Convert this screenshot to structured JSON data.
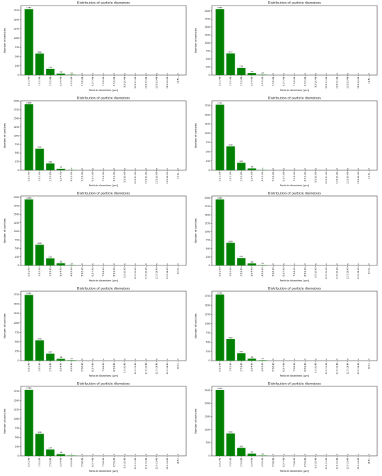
{
  "figure": {
    "panel_count": 10,
    "columns": 2,
    "bar_color": "#008000"
  },
  "chart_data": [
    {
      "type": "bar",
      "panel": "r1c1",
      "title": "Distribution of particle diameters",
      "xlabel": "Particle diameters [μm]",
      "ylabel": "Number of particles",
      "categories": [
        "0.5-1.49",
        "1.5-2.49",
        "2.5-3.49",
        "3.5-4.49",
        "4.5-5.49",
        "5.5-6.49",
        "6.5-7.49",
        "7.5-8.49",
        "8.5-9.49",
        "9.5-10.49",
        "10.5-11.49",
        "11.5-12.49",
        "12.5-13.49",
        "13.5-14.49",
        "14.5+"
      ],
      "values": [
        1782,
        582,
        170,
        40,
        10,
        0,
        0,
        0,
        0,
        0,
        0,
        0,
        0,
        0,
        0
      ],
      "yticks": [
        0,
        250,
        500,
        750,
        1000,
        1250,
        1500,
        1750
      ],
      "ylim": [
        0,
        1880
      ]
    },
    {
      "type": "bar",
      "panel": "r1c2",
      "title": "Distribution of particle diameters",
      "xlabel": "Particle diameters [μm]",
      "ylabel": "Number of particles",
      "categories": [
        "0.5-1.49",
        "1.5-2.49",
        "2.5-3.49",
        "3.5-4.49",
        "4.5-5.49",
        "5.5-6.49",
        "6.5-7.49",
        "7.5-8.49",
        "8.5-9.49",
        "9.5-10.49",
        "10.5-11.49",
        "11.5-12.49",
        "12.5-13.49",
        "13.5-14.49",
        "14.5+"
      ],
      "values": [
        2058,
        677,
        219,
        63,
        12,
        0,
        0,
        0,
        0,
        0,
        0,
        0,
        0,
        0,
        0
      ],
      "yticks": [
        0,
        250,
        500,
        750,
        1000,
        1250,
        1500,
        1750,
        2000
      ],
      "ylim": [
        0,
        2170
      ]
    },
    {
      "type": "bar",
      "panel": "r2c1",
      "title": "Distribution of particle diameters",
      "xlabel": "Particle diameters [μm]",
      "ylabel": "Number of particles",
      "categories": [
        "0.5-1.49",
        "1.5-2.49",
        "2.5-3.49",
        "3.5-4.49",
        "4.5-5.49",
        "5.5-6.49",
        "6.5-7.49",
        "7.5-8.49",
        "8.5-9.49",
        "9.5-10.49",
        "10.5-11.49",
        "11.5-12.49",
        "12.5-13.49",
        "13.5-14.49",
        "14.5+"
      ],
      "values": [
        1908,
        625,
        196,
        43,
        8,
        0,
        0,
        0,
        0,
        0,
        0,
        0,
        0,
        0,
        0
      ],
      "yticks": [
        0,
        250,
        500,
        750,
        1000,
        1250,
        1500,
        1750,
        2000
      ],
      "ylim": [
        0,
        2010
      ]
    },
    {
      "type": "bar",
      "panel": "r2c2",
      "title": "Distribution of particle diameters",
      "xlabel": "Particle diameters [μm]",
      "ylabel": "Number of particles",
      "categories": [
        "0.5-1.49",
        "1.5-2.49",
        "2.5-3.49",
        "3.5-4.49",
        "4.5-5.49",
        "5.5-6.49",
        "6.5-7.49",
        "7.5-8.49",
        "8.5-9.49",
        "9.5-10.49",
        "10.5-11.49",
        "11.5-12.49",
        "12.5-13.49",
        "13.5-14.49",
        "14.5+"
      ],
      "values": [
        1774,
        648,
        203,
        49,
        8,
        0,
        0,
        0,
        0,
        0,
        0,
        0,
        0,
        0,
        0
      ],
      "yticks": [
        0,
        250,
        500,
        750,
        1000,
        1250,
        1500,
        1750
      ],
      "ylim": [
        0,
        1880
      ]
    },
    {
      "type": "bar",
      "panel": "r3c1",
      "title": "Distribution of particle diameters",
      "xlabel": "Particle diameters [μm]",
      "ylabel": "Number of particles",
      "categories": [
        "0.5-1.49",
        "1.5-2.49",
        "2.5-3.49",
        "3.5-4.49",
        "4.5-5.49",
        "5.5-6.49",
        "6.5-7.49",
        "7.5-8.49",
        "8.5-9.49",
        "9.5-10.49",
        "10.5-11.49",
        "11.5-12.49",
        "12.5-13.49",
        "13.5-14.49",
        "14.5+"
      ],
      "values": [
        1938,
        608,
        210,
        65,
        10,
        0,
        0,
        0,
        0,
        0,
        0,
        0,
        0,
        0,
        0
      ],
      "yticks": [
        0,
        250,
        500,
        750,
        1000,
        1250,
        1500,
        1750,
        2000
      ],
      "ylim": [
        0,
        2040
      ]
    },
    {
      "type": "bar",
      "panel": "r3c2",
      "title": "Distribution of particle diameters",
      "xlabel": "Particle diameters [μm]",
      "ylabel": "Number of particles",
      "categories": [
        "0.5-1.49",
        "1.5-2.49",
        "2.5-3.49",
        "3.5-4.49",
        "4.5-5.49",
        "5.5-6.49",
        "6.5-7.49",
        "7.5-8.49",
        "8.5-9.49",
        "9.5-10.49",
        "10.5-11.49",
        "11.5-12.49",
        "12.5-13.49",
        "13.5-14.49",
        "14.5+"
      ],
      "values": [
        1957,
        669,
        221,
        60,
        12,
        0,
        0,
        0,
        0,
        0,
        0,
        0,
        0,
        0,
        0
      ],
      "yticks": [
        0,
        250,
        500,
        750,
        1000,
        1250,
        1500,
        1750,
        2000
      ],
      "ylim": [
        0,
        2060
      ]
    },
    {
      "type": "bar",
      "panel": "r4c1",
      "title": "Distribution of particle diameters",
      "xlabel": "Particle diameters [μm]",
      "ylabel": "Number of particles",
      "categories": [
        "0.5-1.49",
        "1.5-2.49",
        "2.5-3.49",
        "3.5-4.49",
        "4.5-5.49",
        "5.5-6.49",
        "6.5-7.49",
        "7.5-8.49",
        "8.5-9.49",
        "9.5-10.49",
        "10.5-11.49",
        "11.5-12.49",
        "12.5-13.49",
        "13.5-14.49",
        "14.5+"
      ],
      "values": [
        1741,
        540,
        187,
        48,
        12,
        0,
        0,
        0,
        0,
        0,
        0,
        0,
        0,
        0,
        0
      ],
      "yticks": [
        0,
        250,
        500,
        750,
        1000,
        1250,
        1500,
        1750
      ],
      "ylim": [
        0,
        1840
      ]
    },
    {
      "type": "bar",
      "panel": "r4c2",
      "title": "Distribution of particle diameters",
      "xlabel": "Particle diameters [μm]",
      "ylabel": "Number of particles",
      "categories": [
        "0.5-1.49",
        "1.5-2.49",
        "2.5-3.49",
        "3.5-4.49",
        "4.5-5.49",
        "5.5-6.49",
        "6.5-7.49",
        "7.5-8.49",
        "8.5-9.49",
        "9.5-10.49",
        "10.5-11.49",
        "11.5-12.49",
        "12.5-13.49",
        "13.5-14.49",
        "14.5+"
      ],
      "values": [
        1791,
        582,
        202,
        56,
        12,
        0,
        0,
        0,
        0,
        0,
        0,
        0,
        0,
        0,
        0
      ],
      "yticks": [
        0,
        250,
        500,
        750,
        1000,
        1250,
        1500,
        1750
      ],
      "ylim": [
        0,
        1880
      ]
    },
    {
      "type": "bar",
      "panel": "r5c1",
      "title": "Distribution of particle diameters",
      "xlabel": "Particle diameters [μm]",
      "ylabel": "Number of particles",
      "categories": [
        "0.5-1.49",
        "1.5-2.49",
        "2.5-3.49",
        "3.5-4.49",
        "4.5-5.49",
        "5.5-6.49",
        "6.5-7.49",
        "7.5-8.49",
        "8.5-9.49",
        "9.5-10.49",
        "10.5-11.49",
        "11.5-12.49",
        "12.5-13.49",
        "13.5-14.49",
        "14.5+"
      ],
      "values": [
        1788,
        596,
        174,
        48,
        9,
        0,
        0,
        0,
        0,
        0,
        0,
        0,
        0,
        0,
        0
      ],
      "yticks": [
        0,
        250,
        500,
        750,
        1000,
        1250,
        1500,
        1750
      ],
      "ylim": [
        0,
        1880
      ]
    },
    {
      "type": "bar",
      "panel": "r5c2",
      "title": "Distribution of particle diameters",
      "xlabel": "Particle diameters [μm]",
      "ylabel": "Number of particles",
      "categories": [
        "0.5-1.49",
        "1.5-2.49",
        "2.5-3.49",
        "3.5-4.49",
        "4.5-5.49",
        "5.5-6.49",
        "6.5-7.49",
        "7.5-8.49",
        "8.5-9.49",
        "9.5-10.49",
        "10.5-11.49",
        "11.5-12.49",
        "12.5-13.49",
        "13.5-14.49",
        "14.5+"
      ],
      "values": [
        2518,
        856,
        300,
        87,
        12,
        0,
        0,
        0,
        0,
        0,
        0,
        0,
        0,
        0,
        0
      ],
      "yticks": [
        0,
        500,
        1000,
        1500,
        2000,
        2500
      ],
      "ylim": [
        0,
        2650
      ]
    }
  ]
}
